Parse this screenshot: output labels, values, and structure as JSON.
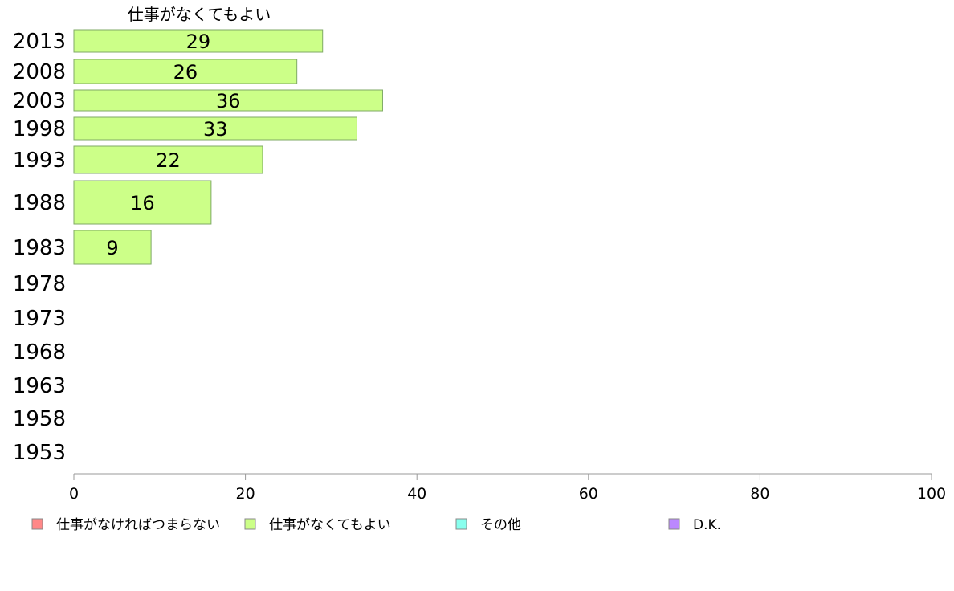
{
  "chart_data": {
    "type": "bar",
    "orientation": "horizontal",
    "title": "",
    "series_title": "仕事がなくてもよい",
    "categories": [
      "2013",
      "2008",
      "2003",
      "1998",
      "1993",
      "1988",
      "1983",
      "1978",
      "1973",
      "1968",
      "1963",
      "1958",
      "1953"
    ],
    "series": [
      {
        "name": "仕事がなくてもよい",
        "color": "#ccff88",
        "values": [
          29,
          26,
          36,
          33,
          22,
          16,
          9,
          null,
          null,
          null,
          null,
          null,
          null
        ]
      }
    ],
    "xlim": [
      0,
      100
    ],
    "xticks": [
      0,
      20,
      40,
      60,
      80,
      100
    ],
    "grid": false,
    "legend": {
      "position": "bottom",
      "entries": [
        {
          "label": "仕事がなければつまらない",
          "color": "#ff8888"
        },
        {
          "label": "仕事がなくてもよい",
          "color": "#ccff88"
        },
        {
          "label": "その他",
          "color": "#88ffee"
        },
        {
          "label": "D.K.",
          "color": "#bb88ff"
        }
      ]
    }
  }
}
